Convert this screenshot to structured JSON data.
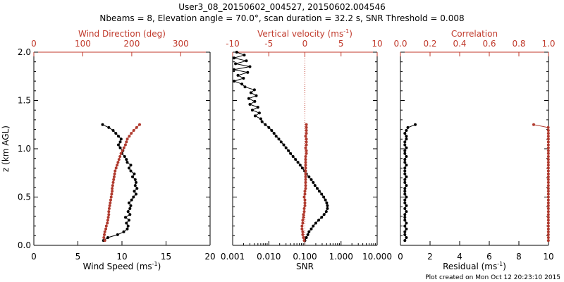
{
  "header": {
    "title_line1": "User3_08_20150602_004527, 20150602.004546",
    "title_line2": "Nbeams = 8, Elevation angle = 70.0°, scan duration = 32.2 s, SNR Threshold = 0.008"
  },
  "footer": {
    "created": "Plot created on Mon Oct 12 20:23:10 2015"
  },
  "colors": {
    "black_series": "#000000",
    "red_series": "#b03a2e",
    "red_axis": "#c0392b"
  },
  "chart_data": [
    {
      "type": "line",
      "panel": "left",
      "ylabel": "z (km AGL)",
      "ylim": [
        0,
        2.0
      ],
      "yticks": [
        0.0,
        0.5,
        1.0,
        1.5,
        2.0
      ],
      "ytick_labels": [
        "0.0",
        "0.5",
        "1.0",
        "1.5",
        "2.0"
      ],
      "xlabel_bottom": "Wind Speed (ms",
      "xlabel_bottom_sup": "-1",
      "xlim_bottom": [
        0,
        20
      ],
      "xticks_bottom": [
        0,
        5,
        10,
        15,
        20
      ],
      "xlabel_top": "Wind Direction (deg)",
      "xlim_top": [
        0,
        360
      ],
      "xticks_top": [
        0,
        100,
        200,
        300
      ],
      "series": [
        {
          "axis": "bottom",
          "color": "black",
          "z": [
            0.05,
            0.08,
            0.11,
            0.14,
            0.17,
            0.2,
            0.23,
            0.26,
            0.29,
            0.32,
            0.35,
            0.38,
            0.41,
            0.44,
            0.47,
            0.5,
            0.53,
            0.56,
            0.59,
            0.62,
            0.65,
            0.68,
            0.71,
            0.74,
            0.77,
            0.8,
            0.83,
            0.86,
            0.89,
            0.92,
            0.95,
            0.98,
            1.01,
            1.04,
            1.07,
            1.1,
            1.13,
            1.16,
            1.19,
            1.22,
            1.25
          ],
          "values": [
            7.9,
            8.4,
            9.5,
            10.2,
            10.6,
            10.7,
            10.5,
            10.8,
            10.4,
            10.9,
            10.7,
            10.9,
            11.0,
            10.8,
            11.1,
            11.3,
            11.6,
            11.4,
            11.7,
            11.5,
            11.6,
            11.5,
            11.2,
            11.4,
            11.0,
            10.8,
            11.0,
            10.6,
            10.5,
            10.3,
            10.0,
            10.1,
            9.8,
            9.6,
            9.8,
            9.9,
            9.6,
            9.3,
            9.0,
            8.5,
            7.8
          ]
        },
        {
          "axis": "top",
          "color": "red",
          "z": [
            0.05,
            0.08,
            0.11,
            0.14,
            0.17,
            0.2,
            0.23,
            0.26,
            0.29,
            0.32,
            0.35,
            0.38,
            0.41,
            0.44,
            0.47,
            0.5,
            0.53,
            0.56,
            0.59,
            0.62,
            0.65,
            0.68,
            0.71,
            0.74,
            0.77,
            0.8,
            0.83,
            0.86,
            0.89,
            0.92,
            0.95,
            0.98,
            1.01,
            1.04,
            1.07,
            1.1,
            1.13,
            1.16,
            1.19,
            1.22,
            1.25
          ],
          "values": [
            145,
            143,
            144,
            145,
            147,
            148,
            150,
            151,
            152,
            153,
            153,
            154,
            155,
            156,
            157,
            158,
            159,
            160,
            160,
            161,
            162,
            163,
            164,
            165,
            166,
            168,
            170,
            172,
            174,
            176,
            178,
            181,
            184,
            187,
            189,
            191,
            195,
            199,
            204,
            210,
            216
          ]
        }
      ]
    },
    {
      "type": "line",
      "panel": "middle",
      "ylim": [
        0,
        2.0
      ],
      "xlabel_bottom": "SNR",
      "xscale_bottom": "log",
      "xlim_bottom": [
        0.001,
        10.0
      ],
      "xticks_bottom": [
        0.001,
        0.01,
        0.1,
        1.0,
        10.0
      ],
      "xtick_labels_bottom": [
        "0.001",
        "0.010",
        "0.100",
        "1.000",
        "10.000"
      ],
      "xlabel_top": "Vertical velocity (ms",
      "xlabel_top_sup": "-1",
      "xlim_top": [
        -10,
        10
      ],
      "xticks_top": [
        -10,
        -5,
        0,
        5,
        10
      ],
      "reference_line_top_x": 0,
      "series": [
        {
          "axis": "bottom",
          "color": "black",
          "z": [
            2.0,
            1.97,
            1.94,
            1.91,
            1.88,
            1.85,
            1.82,
            1.79,
            1.76,
            1.73,
            1.7,
            1.67,
            1.64,
            1.61,
            1.58,
            1.55,
            1.52,
            1.49,
            1.46,
            1.43,
            1.4,
            1.37,
            1.34,
            1.31,
            1.28,
            1.25,
            1.22,
            1.19,
            1.16,
            1.13,
            1.1,
            1.07,
            1.04,
            1.01,
            0.98,
            0.95,
            0.92,
            0.89,
            0.86,
            0.83,
            0.8,
            0.77,
            0.74,
            0.71,
            0.68,
            0.65,
            0.62,
            0.59,
            0.56,
            0.53,
            0.5,
            0.47,
            0.44,
            0.41,
            0.38,
            0.35,
            0.32,
            0.29,
            0.26,
            0.23,
            0.2,
            0.17,
            0.14,
            0.11,
            0.08,
            0.05
          ],
          "values": [
            0.0013,
            0.0021,
            0.0011,
            0.0024,
            0.0012,
            0.003,
            0.0011,
            0.0026,
            0.0014,
            0.002,
            0.0011,
            0.0018,
            0.0022,
            0.004,
            0.0032,
            0.0045,
            0.0028,
            0.0041,
            0.003,
            0.005,
            0.0035,
            0.0055,
            0.0042,
            0.006,
            0.0065,
            0.008,
            0.01,
            0.012,
            0.014,
            0.016,
            0.019,
            0.022,
            0.026,
            0.03,
            0.035,
            0.04,
            0.047,
            0.055,
            0.064,
            0.074,
            0.085,
            0.098,
            0.11,
            0.13,
            0.15,
            0.17,
            0.19,
            0.22,
            0.25,
            0.29,
            0.33,
            0.37,
            0.4,
            0.42,
            0.42,
            0.39,
            0.34,
            0.29,
            0.24,
            0.2,
            0.17,
            0.15,
            0.13,
            0.12,
            0.11,
            0.1
          ]
        },
        {
          "axis": "top",
          "color": "red",
          "z": [
            0.05,
            0.08,
            0.11,
            0.14,
            0.17,
            0.2,
            0.23,
            0.26,
            0.29,
            0.32,
            0.35,
            0.38,
            0.41,
            0.44,
            0.47,
            0.5,
            0.53,
            0.56,
            0.59,
            0.62,
            0.65,
            0.68,
            0.71,
            0.74,
            0.77,
            0.8,
            0.83,
            0.86,
            0.89,
            0.92,
            0.95,
            0.98,
            1.01,
            1.04,
            1.07,
            1.1,
            1.13,
            1.16,
            1.19,
            1.22,
            1.25
          ],
          "values": [
            -0.1,
            -0.2,
            -0.3,
            -0.3,
            -0.4,
            -0.4,
            -0.3,
            -0.3,
            -0.2,
            -0.2,
            -0.1,
            -0.1,
            0.0,
            0.0,
            0.0,
            -0.1,
            0.0,
            0.0,
            0.1,
            0.1,
            0.1,
            0.1,
            0.1,
            0.1,
            0.1,
            0.1,
            0.1,
            0.1,
            0.1,
            0.1,
            0.2,
            0.2,
            0.1,
            0.2,
            0.2,
            0.2,
            0.1,
            0.2,
            0.2,
            0.2,
            0.2
          ]
        }
      ]
    },
    {
      "type": "line",
      "panel": "right",
      "ylim": [
        0,
        2.0
      ],
      "xlabel_bottom": "Residual (ms",
      "xlabel_bottom_sup": "-1",
      "xlim_bottom": [
        0,
        10
      ],
      "xticks_bottom": [
        0,
        2,
        4,
        6,
        8,
        10
      ],
      "xlabel_top": "Correlation",
      "xlim_top": [
        0.0,
        1.0
      ],
      "xticks_top": [
        0.0,
        0.2,
        0.4,
        0.6,
        0.8,
        1.0
      ],
      "xtick_labels_top": [
        "0.0",
        "0.2",
        "0.4",
        "0.6",
        "0.8",
        "1.0"
      ],
      "series": [
        {
          "axis": "bottom",
          "color": "black",
          "z": [
            0.05,
            0.08,
            0.11,
            0.14,
            0.17,
            0.2,
            0.23,
            0.26,
            0.29,
            0.32,
            0.35,
            0.38,
            0.41,
            0.44,
            0.47,
            0.5,
            0.53,
            0.56,
            0.59,
            0.62,
            0.65,
            0.68,
            0.71,
            0.74,
            0.77,
            0.8,
            0.83,
            0.86,
            0.89,
            0.92,
            0.95,
            0.98,
            1.01,
            1.04,
            1.07,
            1.1,
            1.13,
            1.16,
            1.19,
            1.22,
            1.25
          ],
          "values": [
            0.3,
            0.4,
            0.3,
            0.3,
            0.4,
            0.3,
            0.4,
            0.3,
            0.3,
            0.3,
            0.4,
            0.3,
            0.4,
            0.3,
            0.3,
            0.4,
            0.3,
            0.3,
            0.3,
            0.4,
            0.3,
            0.3,
            0.4,
            0.3,
            0.3,
            0.3,
            0.4,
            0.3,
            0.3,
            0.4,
            0.3,
            0.3,
            0.4,
            0.3,
            0.3,
            0.4,
            0.4,
            0.3,
            0.4,
            0.5,
            1.0
          ]
        },
        {
          "axis": "top",
          "color": "red",
          "z": [
            0.05,
            0.08,
            0.11,
            0.14,
            0.17,
            0.2,
            0.23,
            0.26,
            0.29,
            0.32,
            0.35,
            0.38,
            0.41,
            0.44,
            0.47,
            0.5,
            0.53,
            0.56,
            0.59,
            0.62,
            0.65,
            0.68,
            0.71,
            0.74,
            0.77,
            0.8,
            0.83,
            0.86,
            0.89,
            0.92,
            0.95,
            0.98,
            1.01,
            1.04,
            1.07,
            1.1,
            1.13,
            1.16,
            1.19,
            1.22,
            1.25
          ],
          "values": [
            0.999,
            0.999,
            0.999,
            0.999,
            0.999,
            0.999,
            0.999,
            0.999,
            0.999,
            0.999,
            0.999,
            0.999,
            0.999,
            0.999,
            0.999,
            0.999,
            0.999,
            0.999,
            0.999,
            0.999,
            0.999,
            0.999,
            0.999,
            0.999,
            0.999,
            0.999,
            0.999,
            0.999,
            0.999,
            0.999,
            0.999,
            0.999,
            0.999,
            0.999,
            0.999,
            0.999,
            0.999,
            0.999,
            0.999,
            0.998,
            0.9
          ]
        }
      ]
    }
  ]
}
